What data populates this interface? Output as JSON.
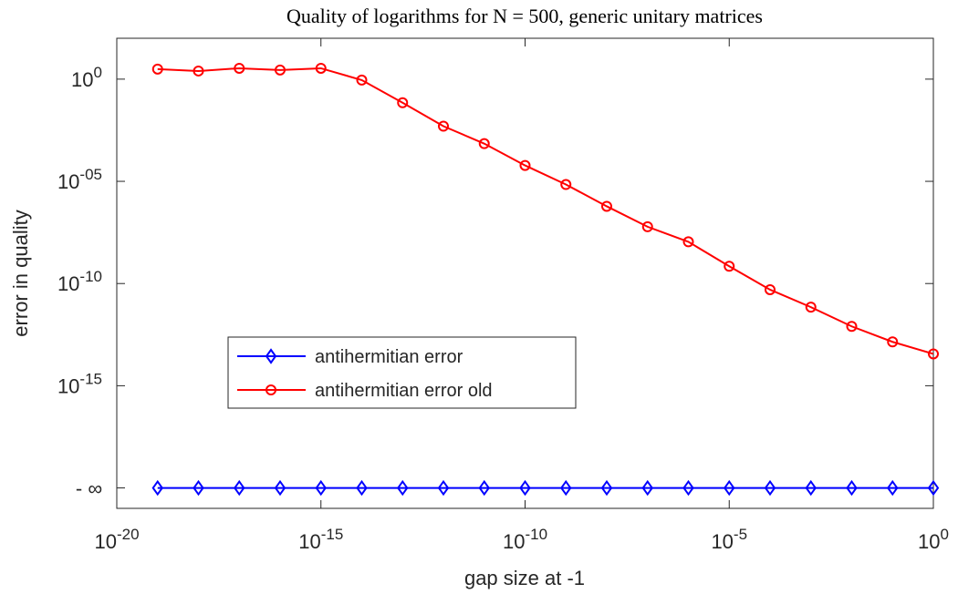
{
  "chart_data": {
    "type": "line",
    "title": "Quality of logarithms for N = 500, generic unitary matrices",
    "x_label": "gap size at -1",
    "y_label": "error in quality",
    "x_scale": "log",
    "y_scale": "log",
    "x": [
      1e-19,
      1e-18,
      1e-17,
      1e-16,
      1e-15,
      1e-14,
      1e-13,
      1e-12,
      1e-11,
      1e-10,
      1e-09,
      1e-08,
      1e-07,
      1e-06,
      1e-05,
      0.0001,
      0.001,
      0.01,
      0.1,
      1
    ],
    "series": [
      {
        "name": "antihermitian error",
        "color": "#0000ff",
        "marker": "diamond",
        "values": [
          1e-20,
          1e-20,
          1e-20,
          1e-20,
          1e-20,
          1e-20,
          1e-20,
          1e-20,
          1e-20,
          1e-20,
          1e-20,
          1e-20,
          1e-20,
          1e-20,
          1e-20,
          1e-20,
          1e-20,
          1e-20,
          1e-20,
          1e-20
        ]
      },
      {
        "name": "antihermitian error old",
        "color": "#ff0000",
        "marker": "circle",
        "values": [
          3.1,
          2.5,
          3.4,
          2.8,
          3.4,
          0.9,
          0.07,
          0.005,
          0.0007,
          6e-05,
          7e-06,
          6e-07,
          6e-08,
          1.1e-08,
          7e-10,
          5e-11,
          7e-12,
          8e-13,
          1.4e-13,
          3.6e-14
        ]
      }
    ],
    "xlim": [
      1e-20,
      1
    ],
    "xticks": [
      {
        "value": 1e-20,
        "label": "10^-20"
      },
      {
        "value": 1e-15,
        "label": "10^-15"
      },
      {
        "value": 1e-10,
        "label": "10^-10"
      },
      {
        "value": 1e-05,
        "label": "10^-5"
      },
      {
        "value": 1,
        "label": "10^0"
      }
    ],
    "ylim": [
      1e-21,
      100
    ],
    "yticks": [
      {
        "value": 1e-20,
        "label": "- ∞"
      },
      {
        "value": 1e-15,
        "label": "10^-15"
      },
      {
        "value": 1e-10,
        "label": "10^-10"
      },
      {
        "value": 1e-05,
        "label": "10^-05"
      },
      {
        "value": 1,
        "label": "10^0"
      }
    ],
    "legend": "lower-left",
    "grid": false
  }
}
